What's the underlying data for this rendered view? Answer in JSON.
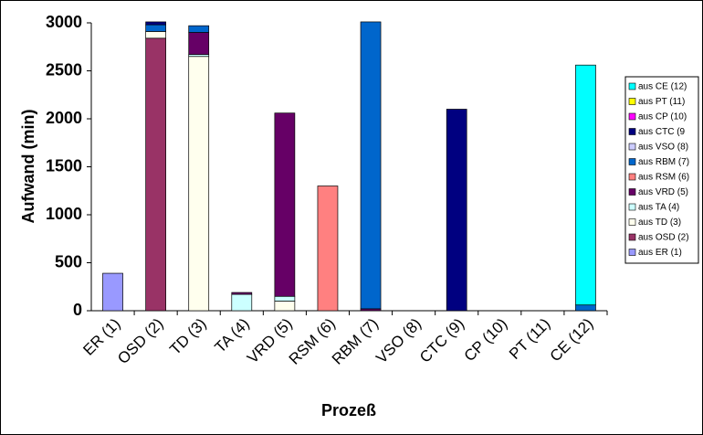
{
  "chart_data": {
    "type": "bar",
    "stacked": true,
    "x_label": "Prozeß",
    "y_label": "Aufwand (min)",
    "categories": [
      "ER (1)",
      "OSD (2)",
      "TD (3)",
      "TA (4)",
      "VRD (5)",
      "RSM (6)",
      "RBM (7)",
      "VSO (8)",
      "CTC (9)",
      "CP (10)",
      "PT (11)",
      "CE (12)"
    ],
    "series": [
      {
        "name": "aus ER (1)",
        "color": "#9999ff",
        "values": [
          390,
          null,
          null,
          null,
          null,
          null,
          null,
          null,
          null,
          null,
          null,
          null
        ]
      },
      {
        "name": "aus OSD (2)",
        "color": "#993366",
        "values": [
          null,
          2840,
          null,
          null,
          null,
          null,
          null,
          null,
          null,
          null,
          null,
          null
        ]
      },
      {
        "name": "aus TD (3)",
        "color": "#ffffee",
        "values": [
          null,
          70,
          2650,
          null,
          100,
          null,
          null,
          null,
          null,
          null,
          null,
          null
        ]
      },
      {
        "name": "aus TA (4)",
        "color": "#ccffff",
        "values": [
          null,
          null,
          20,
          170,
          50,
          null,
          null,
          null,
          null,
          null,
          null,
          null
        ]
      },
      {
        "name": "aus VRD (5)",
        "color": "#660066",
        "values": [
          null,
          null,
          230,
          20,
          1910,
          null,
          20,
          null,
          null,
          null,
          null,
          null
        ]
      },
      {
        "name": "aus RSM (6)",
        "color": "#ff8080",
        "values": [
          null,
          null,
          null,
          null,
          null,
          1300,
          null,
          null,
          null,
          null,
          null,
          null
        ]
      },
      {
        "name": "aus RBM (7)",
        "color": "#0066cc",
        "values": [
          null,
          70,
          70,
          null,
          null,
          null,
          2990,
          null,
          null,
          null,
          null,
          60
        ]
      },
      {
        "name": "aus VSO (8)",
        "color": "#ccccff",
        "values": [
          null,
          null,
          null,
          null,
          null,
          null,
          null,
          null,
          null,
          null,
          null,
          null
        ]
      },
      {
        "name": "aus CTC (9",
        "color": "#000080",
        "values": [
          null,
          30,
          null,
          null,
          null,
          null,
          null,
          null,
          2100,
          null,
          null,
          null
        ]
      },
      {
        "name": "aus CP (10)",
        "color": "#ff00ff",
        "values": [
          null,
          null,
          null,
          null,
          null,
          null,
          null,
          null,
          null,
          null,
          null,
          null
        ]
      },
      {
        "name": "aus PT (11)",
        "color": "#ffff00",
        "values": [
          null,
          null,
          null,
          null,
          null,
          null,
          null,
          null,
          null,
          null,
          null,
          null
        ]
      },
      {
        "name": "aus CE (12)",
        "color": "#00ffff",
        "values": [
          null,
          null,
          null,
          null,
          null,
          null,
          null,
          null,
          null,
          null,
          null,
          2500
        ]
      }
    ],
    "ylim": [
      0,
      3000
    ],
    "yticks": [
      0,
      500,
      1000,
      1500,
      2000,
      2500,
      3000
    ],
    "grid": false,
    "legend": "right"
  }
}
